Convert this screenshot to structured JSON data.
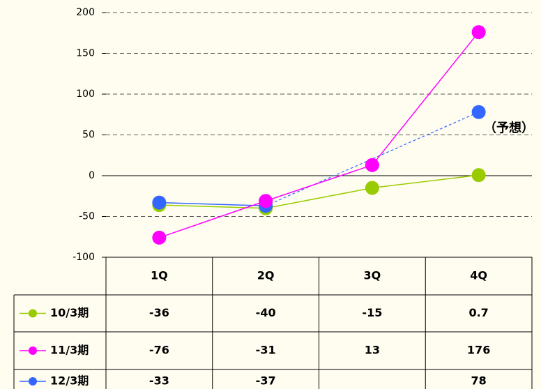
{
  "chart_data": {
    "type": "line",
    "categories": [
      "1Q",
      "2Q",
      "3Q",
      "4Q"
    ],
    "series": [
      {
        "name": "10/3期",
        "color": "#99cc00",
        "values": [
          -36,
          -40,
          -15,
          0.7
        ]
      },
      {
        "name": "11/3期",
        "color": "#ff00ff",
        "values": [
          -76,
          -31,
          13,
          176
        ]
      },
      {
        "name": "12/3期",
        "color": "#3366ff",
        "values": [
          -33,
          -37,
          null,
          78
        ]
      }
    ],
    "annotation": "（予想）",
    "ylim": [
      -100,
      200
    ],
    "yticks": [
      -100,
      -50,
      0,
      50,
      100,
      150,
      200
    ],
    "grid": true
  }
}
